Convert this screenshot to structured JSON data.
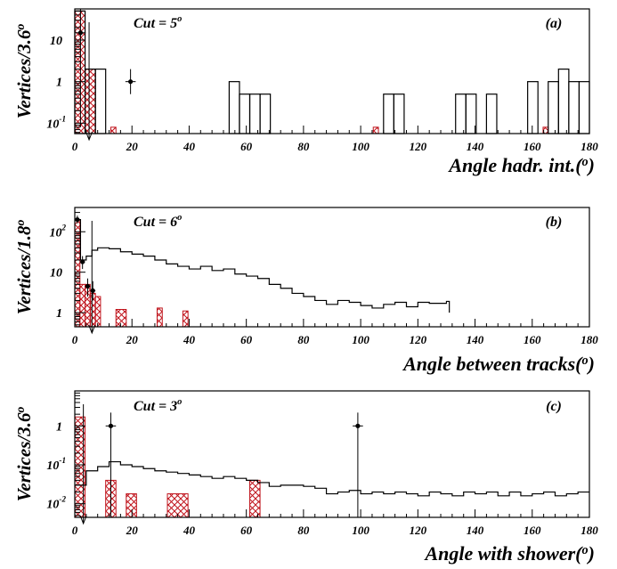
{
  "chart_data": [
    {
      "type": "histogram",
      "panel_label": "(a)",
      "cut_label": "Cut = 5",
      "cut_sup": "o",
      "ylabel": "Vertices/3.6",
      "ylabel_sup": "o",
      "xlabel": "Angle hadr. int.(",
      "xlabel_sup": "o",
      "xlabel_end": ")",
      "xlim": [
        0,
        180
      ],
      "ylim_log10": [
        -1.25,
        1.75
      ],
      "log_y": true,
      "x_ticks": [
        0,
        20,
        40,
        60,
        80,
        100,
        120,
        140,
        160,
        180
      ],
      "y_ticks": [
        {
          "mant": "10",
          "exp": "-1",
          "log": -1
        },
        {
          "mant": "1",
          "exp": "",
          "log": 0
        },
        {
          "mant": "10",
          "exp": "",
          "log": 1
        }
      ],
      "cut_value": 5,
      "bin_width": 3.6,
      "mc_histogram": [
        [
          0,
          3.6,
          50
        ],
        [
          3.6,
          7.2,
          2
        ],
        [
          7.2,
          10.8,
          2
        ],
        [
          54,
          57.6,
          1
        ],
        [
          57.6,
          61.2,
          0.5
        ],
        [
          61.2,
          64.8,
          0.5
        ],
        [
          64.8,
          68.4,
          0.5
        ],
        [
          108,
          111.6,
          0.5
        ],
        [
          111.6,
          115.2,
          0.5
        ],
        [
          133.2,
          136.8,
          0.5
        ],
        [
          136.8,
          140.4,
          0.5
        ],
        [
          144,
          147.6,
          0.5
        ],
        [
          158.4,
          162,
          1
        ],
        [
          165.6,
          169.2,
          1
        ],
        [
          169.2,
          172.8,
          2
        ],
        [
          172.8,
          176.4,
          1
        ],
        [
          176.4,
          180,
          1
        ]
      ],
      "background_hatched": [
        [
          0,
          3.6,
          50
        ],
        [
          3.6,
          7.2,
          2
        ],
        [
          12.6,
          14.4,
          0.08
        ],
        [
          104.4,
          106.2,
          0.08
        ],
        [
          163.8,
          165.6,
          0.08
        ]
      ],
      "data_points": [
        {
          "x": 2,
          "y": 15,
          "xerr": 1.8,
          "ylo": 0.08,
          "yhi": 60
        },
        {
          "x": 19.5,
          "y": 1,
          "xerr": 1.8,
          "ylo": 0.5,
          "yhi": 2
        }
      ]
    },
    {
      "type": "histogram",
      "panel_label": "(b)",
      "cut_label": "Cut = 6",
      "cut_sup": "o",
      "ylabel": "Vertices/1.8",
      "ylabel_sup": "o",
      "xlabel": "Angle between tracks(",
      "xlabel_sup": "o",
      "xlabel_end": ")",
      "xlim": [
        0,
        180
      ],
      "ylim_log10": [
        -0.35,
        2.6
      ],
      "log_y": true,
      "x_ticks": [
        0,
        20,
        40,
        60,
        80,
        100,
        120,
        140,
        160,
        180
      ],
      "y_ticks": [
        {
          "mant": "1",
          "exp": "",
          "log": 0
        },
        {
          "mant": "10",
          "exp": "",
          "log": 1
        },
        {
          "mant": "10",
          "exp": "2",
          "log": 2
        }
      ],
      "cut_value": 6,
      "bin_width": 1.8,
      "mc_curve": [
        [
          0,
          200
        ],
        [
          2,
          20
        ],
        [
          4,
          25
        ],
        [
          6,
          35
        ],
        [
          8,
          40
        ],
        [
          12,
          38
        ],
        [
          16,
          32
        ],
        [
          20,
          28
        ],
        [
          24,
          25
        ],
        [
          28,
          20
        ],
        [
          32,
          16
        ],
        [
          36,
          14
        ],
        [
          40,
          12
        ],
        [
          44,
          14
        ],
        [
          48,
          11
        ],
        [
          52,
          12
        ],
        [
          56,
          9
        ],
        [
          60,
          8
        ],
        [
          64,
          7
        ],
        [
          68,
          5
        ],
        [
          72,
          4
        ],
        [
          76,
          3
        ],
        [
          80,
          2.5
        ],
        [
          84,
          2
        ],
        [
          88,
          1.6
        ],
        [
          92,
          2
        ],
        [
          96,
          1.8
        ],
        [
          100,
          1.5
        ],
        [
          104,
          1.3
        ],
        [
          108,
          1.6
        ],
        [
          112,
          1.8
        ],
        [
          116,
          1.4
        ],
        [
          120,
          1.8
        ],
        [
          124,
          1.7
        ],
        [
          128,
          1.7
        ],
        [
          130,
          1.9
        ],
        [
          131,
          1
        ]
      ],
      "background_hatched": [
        [
          0,
          1.8,
          200
        ],
        [
          1.8,
          3.6,
          5
        ],
        [
          3.6,
          5.4,
          5
        ],
        [
          5.4,
          7.2,
          3
        ],
        [
          7.2,
          9,
          2.5
        ],
        [
          14.4,
          18,
          1.2
        ],
        [
          28.8,
          30.6,
          1.3
        ],
        [
          37.8,
          39.6,
          1.1
        ]
      ],
      "data_points": [
        {
          "x": 0.9,
          "y": 200,
          "xerr": 0.9,
          "ylo": 160,
          "yhi": 250
        },
        {
          "x": 2.7,
          "y": 18,
          "xerr": 0.9,
          "ylo": 12,
          "yhi": 25
        },
        {
          "x": 4.5,
          "y": 4.5,
          "xerr": 0.9,
          "ylo": 2.5,
          "yhi": 7
        },
        {
          "x": 6.3,
          "y": 3.5,
          "xerr": 0.9,
          "ylo": 2,
          "yhi": 6
        }
      ]
    },
    {
      "type": "histogram",
      "panel_label": "(c)",
      "cut_label": "Cut = 3",
      "cut_sup": "o",
      "ylabel": "Vertices/3.6",
      "ylabel_sup": "o",
      "xlabel": "Angle with shower(",
      "xlabel_sup": "o",
      "xlabel_end": ")",
      "xlim": [
        0,
        180
      ],
      "ylim_log10": [
        -2.35,
        0.9
      ],
      "log_y": true,
      "x_ticks": [
        0,
        20,
        40,
        60,
        80,
        100,
        120,
        140,
        160,
        180
      ],
      "y_ticks": [
        {
          "mant": "10",
          "exp": "-2",
          "log": -2
        },
        {
          "mant": "10",
          "exp": "-1",
          "log": -1
        },
        {
          "mant": "1",
          "exp": "",
          "log": 0
        }
      ],
      "cut_value": 3,
      "bin_width": 3.6,
      "mc_curve": [
        [
          0,
          0.03
        ],
        [
          4,
          0.07
        ],
        [
          8,
          0.09
        ],
        [
          12,
          0.12
        ],
        [
          16,
          0.1
        ],
        [
          20,
          0.09
        ],
        [
          24,
          0.08
        ],
        [
          28,
          0.07
        ],
        [
          32,
          0.065
        ],
        [
          36,
          0.06
        ],
        [
          40,
          0.055
        ],
        [
          44,
          0.05
        ],
        [
          48,
          0.045
        ],
        [
          52,
          0.05
        ],
        [
          56,
          0.045
        ],
        [
          60,
          0.04
        ],
        [
          64,
          0.035
        ],
        [
          68,
          0.028
        ],
        [
          72,
          0.03
        ],
        [
          76,
          0.03
        ],
        [
          80,
          0.028
        ],
        [
          84,
          0.025
        ],
        [
          88,
          0.018
        ],
        [
          92,
          0.02
        ],
        [
          96,
          0.022
        ],
        [
          100,
          0.018
        ],
        [
          104,
          0.02
        ],
        [
          108,
          0.018
        ],
        [
          112,
          0.02
        ],
        [
          116,
          0.018
        ],
        [
          120,
          0.016
        ],
        [
          124,
          0.02
        ],
        [
          128,
          0.018
        ],
        [
          132,
          0.016
        ],
        [
          136,
          0.02
        ],
        [
          140,
          0.018
        ],
        [
          144,
          0.02
        ],
        [
          148,
          0.016
        ],
        [
          152,
          0.02
        ],
        [
          156,
          0.016
        ],
        [
          160,
          0.018
        ],
        [
          164,
          0.02
        ],
        [
          168,
          0.016
        ],
        [
          172,
          0.018
        ],
        [
          176,
          0.02
        ],
        [
          180,
          0.02
        ]
      ],
      "background_hatched": [
        [
          0,
          3.6,
          1.7
        ],
        [
          10.8,
          14.4,
          0.04
        ],
        [
          18,
          21.6,
          0.018
        ],
        [
          32.4,
          39.6,
          0.018
        ],
        [
          61.2,
          64.8,
          0.04
        ]
      ],
      "data_points": [
        {
          "x": 12.6,
          "y": 1,
          "xerr": 1.8,
          "ylo": 0.004,
          "yhi": 2.2
        },
        {
          "x": 99,
          "y": 1,
          "xerr": 1.8,
          "ylo": 0.004,
          "yhi": 2.2
        }
      ]
    }
  ]
}
